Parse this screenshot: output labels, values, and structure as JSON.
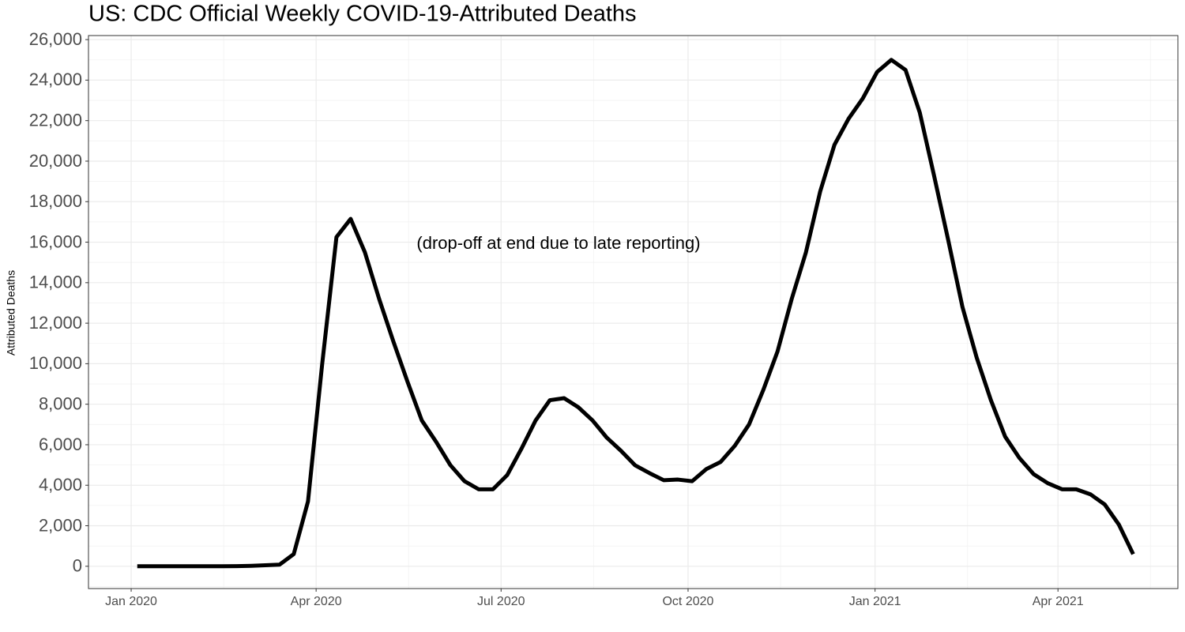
{
  "chart_data": {
    "type": "line",
    "title": "US: CDC Official Weekly COVID-19-Attributed Deaths",
    "y_label": "Attributed Deaths",
    "annotation": "(drop-off at end due to late reporting)",
    "x": [
      "2020-01-04",
      "2020-01-11",
      "2020-01-18",
      "2020-01-25",
      "2020-02-01",
      "2020-02-08",
      "2020-02-15",
      "2020-02-22",
      "2020-02-29",
      "2020-03-07",
      "2020-03-14",
      "2020-03-21",
      "2020-03-28",
      "2020-04-04",
      "2020-04-11",
      "2020-04-18",
      "2020-04-25",
      "2020-05-02",
      "2020-05-09",
      "2020-05-16",
      "2020-05-23",
      "2020-05-30",
      "2020-06-06",
      "2020-06-13",
      "2020-06-20",
      "2020-06-27",
      "2020-07-04",
      "2020-07-11",
      "2020-07-18",
      "2020-07-25",
      "2020-08-01",
      "2020-08-08",
      "2020-08-15",
      "2020-08-22",
      "2020-08-29",
      "2020-09-05",
      "2020-09-12",
      "2020-09-19",
      "2020-09-26",
      "2020-10-03",
      "2020-10-10",
      "2020-10-17",
      "2020-10-24",
      "2020-10-31",
      "2020-11-07",
      "2020-11-14",
      "2020-11-21",
      "2020-11-28",
      "2020-12-05",
      "2020-12-12",
      "2020-12-19",
      "2020-12-26",
      "2021-01-02",
      "2021-01-09",
      "2021-01-16",
      "2021-01-23",
      "2021-01-30",
      "2021-02-06",
      "2021-02-13",
      "2021-02-20",
      "2021-02-27",
      "2021-03-06",
      "2021-03-13",
      "2021-03-20",
      "2021-03-27",
      "2021-04-03",
      "2021-04-10",
      "2021-04-17",
      "2021-04-24",
      "2021-05-01",
      "2021-05-08"
    ],
    "series": [
      {
        "name": "Attributed Deaths",
        "color": "#000000",
        "values": [
          0,
          0,
          0,
          0,
          0,
          0,
          0,
          5,
          20,
          50,
          80,
          600,
          3200,
          10000,
          16250,
          17150,
          15500,
          13200,
          11100,
          9100,
          7200,
          6150,
          5000,
          4200,
          3800,
          3800,
          4500,
          5800,
          7200,
          8200,
          8300,
          7850,
          7200,
          6350,
          5700,
          4980,
          4600,
          4250,
          4280,
          4200,
          4800,
          5150,
          5950,
          7000,
          8700,
          10600,
          13200,
          15500,
          18500,
          20800,
          22100,
          23100,
          24400,
          25000,
          24500,
          22400,
          19300,
          16100,
          12800,
          10300,
          8200,
          6400,
          5350,
          4550,
          4100,
          3800,
          3800,
          3550,
          3050,
          2050,
          600
        ]
      }
    ],
    "xlim": [
      "2019-12-11",
      "2021-05-30"
    ],
    "xticks": [
      {
        "value": "2020-01-01",
        "label": "Jan 2020"
      },
      {
        "value": "2020-04-01",
        "label": "Apr 2020"
      },
      {
        "value": "2020-07-01",
        "label": "Jul 2020"
      },
      {
        "value": "2020-10-01",
        "label": "Oct 2020"
      },
      {
        "value": "2021-01-01",
        "label": "Jan 2021"
      },
      {
        "value": "2021-04-01",
        "label": "Apr 2021"
      }
    ],
    "ylim": [
      -1100,
      26200
    ],
    "yticks": [
      0,
      {
        "value": 2000,
        "label": "2,000"
      },
      {
        "value": 4000,
        "label": "4,000"
      },
      {
        "value": 6000,
        "label": "6,000"
      },
      {
        "value": 8000,
        "label": "8,000"
      },
      {
        "value": 10000,
        "label": "10,000"
      },
      {
        "value": 12000,
        "label": "12,000"
      },
      {
        "value": 14000,
        "label": "14,000"
      },
      {
        "value": 16000,
        "label": "16,000"
      },
      {
        "value": 18000,
        "label": "18,000"
      },
      {
        "value": 20000,
        "label": "20,000"
      },
      {
        "value": 22000,
        "label": "22,000"
      },
      {
        "value": 24000,
        "label": "24,000"
      },
      {
        "value": 26000,
        "label": "26,000"
      }
    ],
    "grid": true
  }
}
